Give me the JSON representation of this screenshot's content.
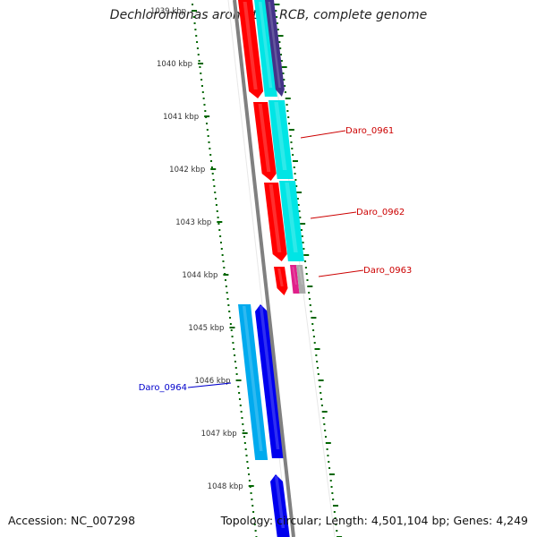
{
  "title": "Dechloromonas aromatica RCB, complete genome",
  "accession_text": "Accession: NC_007298",
  "summary_text": "Topology: circular; Length: 4,501,104 bp; Genes: 4,249",
  "ticks": [
    {
      "label": "1039 kbp",
      "kbp": 1039
    },
    {
      "label": "1040 kbp",
      "kbp": 1040
    },
    {
      "label": "1041 kbp",
      "kbp": 1041
    },
    {
      "label": "1042 kbp",
      "kbp": 1042
    },
    {
      "label": "1043 kbp",
      "kbp": 1043
    },
    {
      "label": "1044 kbp",
      "kbp": 1044
    },
    {
      "label": "1045 kbp",
      "kbp": 1045
    },
    {
      "label": "1046 kbp",
      "kbp": 1046
    },
    {
      "label": "1047 kbp",
      "kbp": 1047
    },
    {
      "label": "1048 kbp",
      "kbp": 1048
    }
  ],
  "gene_labels": [
    {
      "text": "Daro_0961",
      "color": "#cc0000"
    },
    {
      "text": "Daro_0962",
      "color": "#cc0000"
    },
    {
      "text": "Daro_0963",
      "color": "#cc0000"
    },
    {
      "text": "Daro_0964",
      "color": "#0000cc"
    }
  ],
  "colors": {
    "forward_gene": "#ff0000",
    "forward_cds": "#00e5e5",
    "reverse_gene": "#0000ee",
    "reverse_cds": "#00aaee",
    "rrna": "#e0208a",
    "other": "#aaaaaa",
    "misc": "#443388",
    "backbone": "#808080",
    "gc_skew": "#006600"
  }
}
